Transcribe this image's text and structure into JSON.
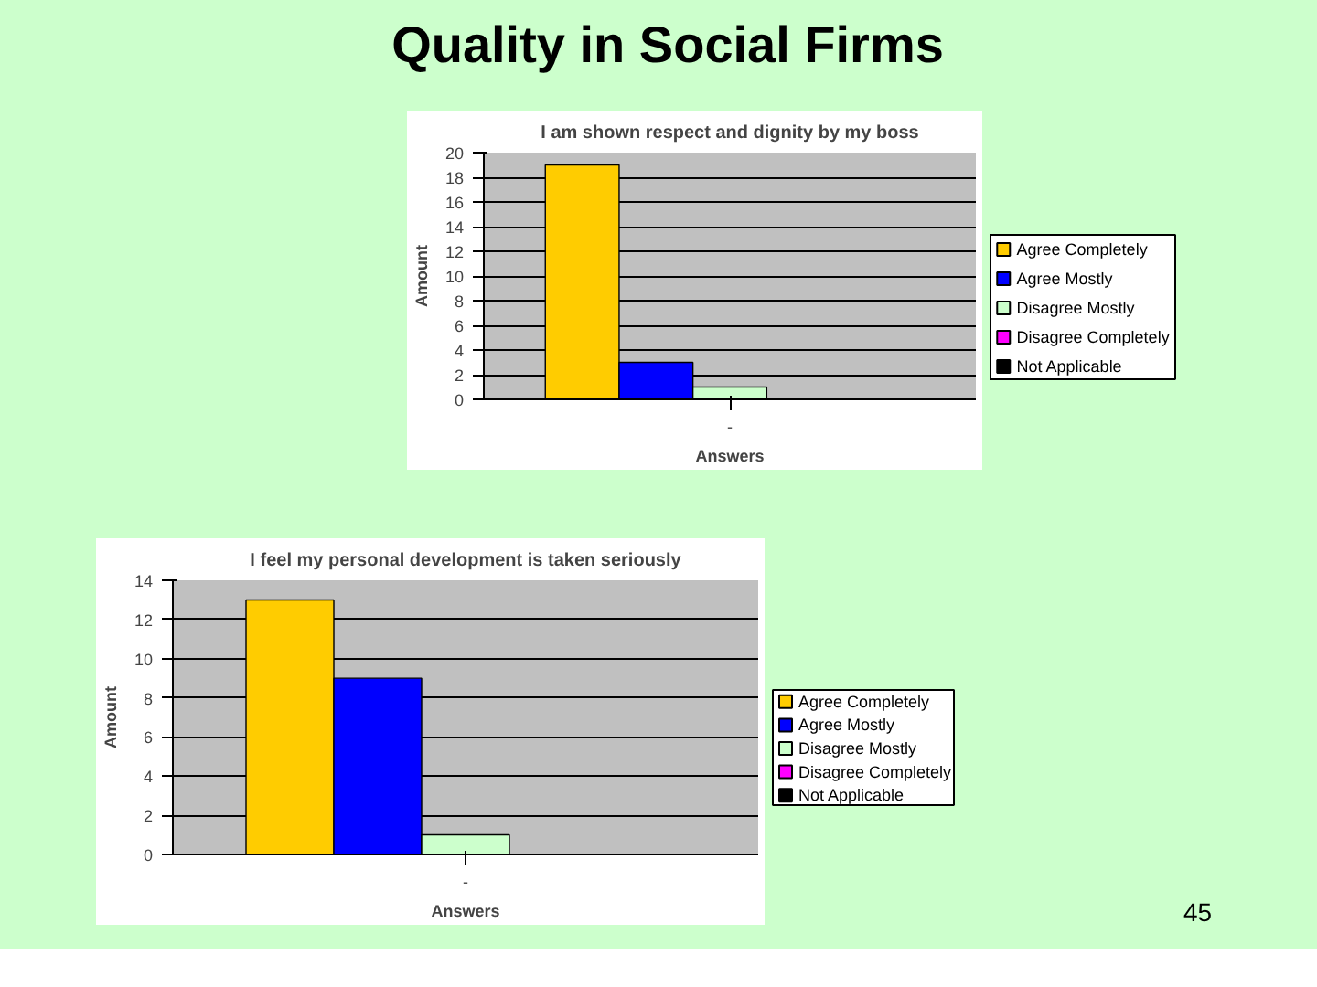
{
  "chart_data": [
    {
      "type": "bar",
      "title": "I am shown respect and dignity by my boss",
      "xlabel": "Answers",
      "ylabel": "Amount",
      "categories": [
        "-"
      ],
      "series": [
        {
          "name": "Agree Completely",
          "color": "#ffcc00",
          "values": [
            19
          ]
        },
        {
          "name": "Agree Mostly",
          "color": "#0000ff",
          "values": [
            3
          ]
        },
        {
          "name": "Disagree Mostly",
          "color": "#ccffcc",
          "values": [
            1
          ]
        },
        {
          "name": "Disagree Completely",
          "color": "#ff00ff",
          "values": [
            0
          ]
        },
        {
          "name": "Not Applicable",
          "color": "#000000",
          "values": [
            0
          ]
        }
      ],
      "ylim": [
        0,
        20
      ],
      "yticks": [
        0,
        2,
        4,
        6,
        8,
        10,
        12,
        14,
        16,
        18,
        20
      ],
      "grid": "y",
      "legend": "right",
      "annotations": [
        "Quality in Social Firms"
      ]
    },
    {
      "type": "bar",
      "title": "I feel my personal development is taken seriously",
      "xlabel": "Answers",
      "ylabel": "Amount",
      "categories": [
        "-"
      ],
      "series": [
        {
          "name": "Agree Completely",
          "color": "#ffcc00",
          "values": [
            13
          ]
        },
        {
          "name": "Agree Mostly",
          "color": "#0000ff",
          "values": [
            9
          ]
        },
        {
          "name": "Disagree Mostly",
          "color": "#ccffcc",
          "values": [
            1
          ]
        },
        {
          "name": "Disagree Completely",
          "color": "#ff00ff",
          "values": [
            0
          ]
        },
        {
          "name": "Not Applicable",
          "color": "#000000",
          "values": [
            0
          ]
        }
      ],
      "ylim": [
        0,
        14
      ],
      "yticks": [
        0,
        2,
        4,
        6,
        8,
        10,
        12,
        14
      ],
      "grid": "y",
      "legend": "right",
      "annotations": [
        "45"
      ]
    }
  ]
}
